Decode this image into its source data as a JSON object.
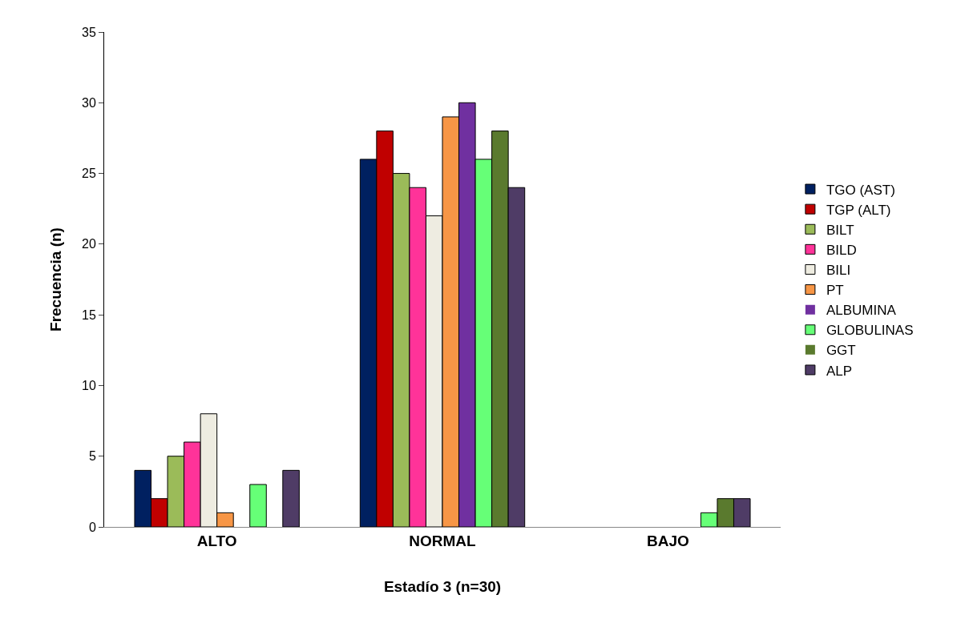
{
  "chart_data": {
    "type": "bar",
    "xlabel": "Estadío 3 (n=30)",
    "ylabel": "Frecuencia (n)",
    "categories": [
      "ALTO",
      "NORMAL",
      "BAJO"
    ],
    "series": [
      {
        "name": "TGO (AST)",
        "color": "#002060",
        "values": [
          4,
          26,
          0
        ]
      },
      {
        "name": "TGP (ALT)",
        "color": "#c00000",
        "values": [
          2,
          28,
          0
        ]
      },
      {
        "name": "BILT",
        "color": "#9bbb59",
        "values": [
          5,
          25,
          0
        ]
      },
      {
        "name": "BILD",
        "color": "#ff3399",
        "values": [
          6,
          24,
          0
        ]
      },
      {
        "name": "BILI",
        "color": "#eeece1",
        "values": [
          8,
          22,
          0
        ]
      },
      {
        "name": "PT",
        "color": "#f79646",
        "values": [
          1,
          29,
          0
        ]
      },
      {
        "name": "ALBUMINA",
        "color": "#7030a0",
        "values": [
          0,
          30,
          0
        ]
      },
      {
        "name": "GLOBULINAS",
        "color": "#66ff77",
        "values": [
          3,
          26,
          1
        ]
      },
      {
        "name": "GGT",
        "color": "#5a7a2e",
        "values": [
          0,
          28,
          2
        ]
      },
      {
        "name": "ALP",
        "color": "#4f3c66",
        "values": [
          4,
          24,
          2
        ]
      }
    ],
    "ylim": [
      0,
      35
    ],
    "yticks": [
      0,
      5,
      10,
      15,
      20,
      25,
      30,
      35
    ],
    "grid": false,
    "legend": "right"
  }
}
